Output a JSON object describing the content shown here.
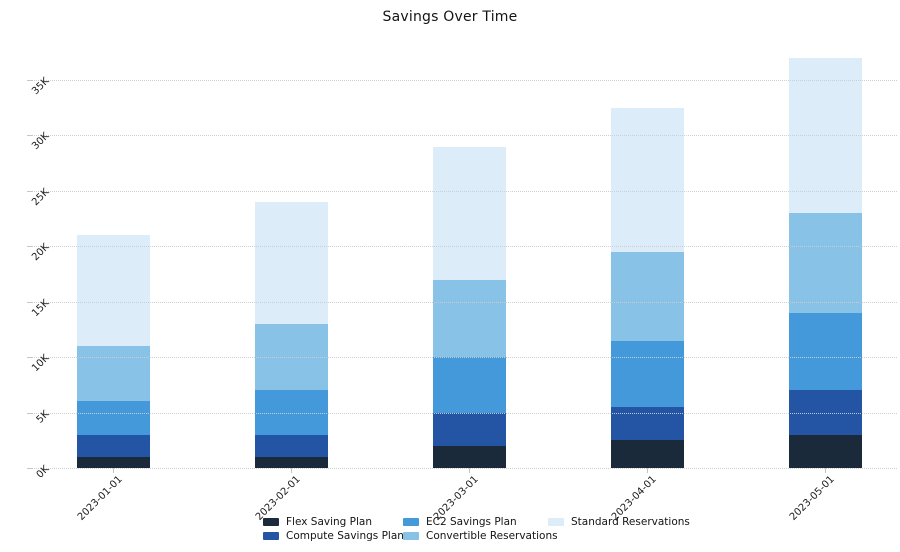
{
  "title": "Savings Over Time",
  "chart_data": {
    "type": "bar",
    "stacked": true,
    "title": "Savings Over Time",
    "xlabel": "",
    "ylabel": "",
    "categories": [
      "2023-01-01",
      "2023-02-01",
      "2023-03-01",
      "2023-04-01",
      "2023-05-01"
    ],
    "series": [
      {
        "name": "Flex Saving Plan",
        "color": "#1b2a3a",
        "values": [
          1000,
          1000,
          2000,
          2500,
          3000
        ]
      },
      {
        "name": "Compute Savings Plan",
        "color": "#2355a4",
        "values": [
          2000,
          2000,
          3000,
          3000,
          4000
        ]
      },
      {
        "name": "EC2 Savings Plan",
        "color": "#4399da",
        "values": [
          3000,
          4000,
          5000,
          6000,
          7000
        ]
      },
      {
        "name": "Convertible Reservations",
        "color": "#88c2e6",
        "values": [
          5000,
          6000,
          7000,
          8000,
          9000
        ]
      },
      {
        "name": "Standard Reservations",
        "color": "#dcedf9",
        "values": [
          10000,
          11000,
          12000,
          13000,
          14000
        ]
      }
    ],
    "ytick_labels": [
      "0K",
      "5K",
      "10K",
      "15K",
      "20K",
      "25K",
      "30K",
      "35K"
    ],
    "ytick_values": [
      0,
      5000,
      10000,
      15000,
      20000,
      25000,
      30000,
      35000
    ],
    "ylim": [
      0,
      38200
    ],
    "grid": "horizontal-dotted",
    "legend_position": "bottom",
    "legend_columns": [
      [
        "Flex Saving Plan",
        "Compute Savings Plan"
      ],
      [
        "EC2 Savings Plan",
        "Convertible Reservations"
      ],
      [
        "Standard Reservations"
      ]
    ]
  }
}
